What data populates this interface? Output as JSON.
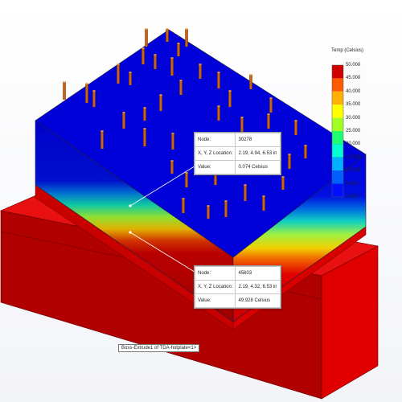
{
  "legend": {
    "title": "Temp (Celsius)",
    "ticks": [
      "50.000",
      "45.000",
      "40.000",
      "35.000",
      "30.000",
      "25.000",
      "20.000",
      "15.000",
      "10.000",
      "5.000",
      "0.000"
    ],
    "colors": [
      "#d00000",
      "#ff5a00",
      "#ffb000",
      "#ffff00",
      "#a0ff20",
      "#20ff70",
      "#00ffd0",
      "#00b0ff",
      "#0060ff",
      "#0010ff"
    ]
  },
  "probes": [
    {
      "rows": [
        {
          "label": "Node:",
          "value": "30278"
        },
        {
          "label": "X, Y, Z Location:",
          "value": "2.19, 4.94, 6.53 in"
        },
        {
          "label": "Value:",
          "value": "0.074 Celsius"
        }
      ]
    },
    {
      "rows": [
        {
          "label": "Node:",
          "value": "45603"
        },
        {
          "label": "X, Y, Z Location:",
          "value": "2.19, 4.32, 6.53 in"
        },
        {
          "label": "Value:",
          "value": "49.928 Celsius"
        }
      ]
    }
  ],
  "part_label": "Boss-Extrude1 of TDA-hotplate<1>"
}
